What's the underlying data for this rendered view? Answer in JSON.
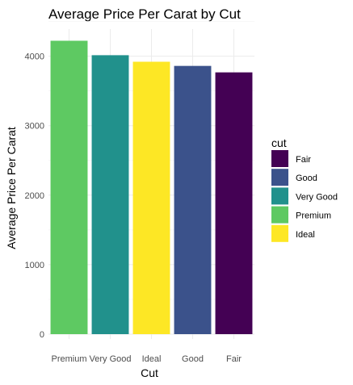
{
  "chart_data": {
    "type": "bar",
    "title": "Average Price Per Carat by Cut",
    "xlabel": "Cut",
    "ylabel": "Average Price Per Carat",
    "categories": [
      "Premium",
      "Very Good",
      "Ideal",
      "Good",
      "Fair"
    ],
    "values": [
      4222,
      4014,
      3920,
      3860,
      3767
    ],
    "colors": [
      "#5ec962",
      "#21918c",
      "#fde725",
      "#3b528b",
      "#440154"
    ],
    "ylim": [
      0,
      4400
    ],
    "yticks": [
      0,
      1000,
      2000,
      3000,
      4000
    ],
    "grid": true,
    "legend": {
      "title": "cut",
      "position": "right",
      "entries": [
        {
          "label": "Fair",
          "color": "#440154"
        },
        {
          "label": "Good",
          "color": "#3b528b"
        },
        {
          "label": "Very Good",
          "color": "#21918c"
        },
        {
          "label": "Premium",
          "color": "#5ec962"
        },
        {
          "label": "Ideal",
          "color": "#fde725"
        }
      ]
    }
  }
}
